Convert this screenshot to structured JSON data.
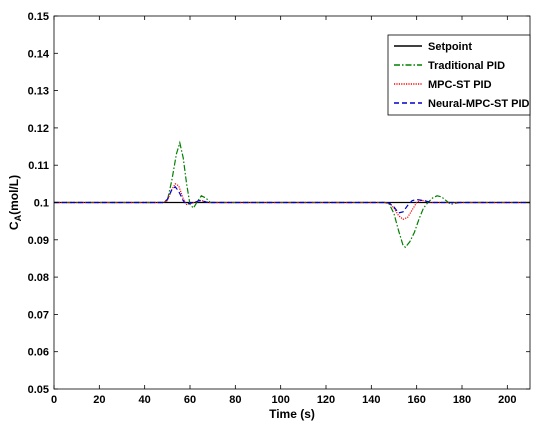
{
  "chart_data": {
    "type": "line",
    "xlabel": "Time (s)",
    "ylabel_main": "C",
    "ylabel_sub": "A",
    "ylabel_rest": "(mol/L)",
    "xlim": [
      0,
      210
    ],
    "ylim": [
      0.05,
      0.15
    ],
    "xticks": [
      0,
      20,
      40,
      60,
      80,
      100,
      120,
      140,
      160,
      180,
      200
    ],
    "yticks": [
      0.05,
      0.06,
      0.07,
      0.08,
      0.09,
      0.1,
      0.11,
      0.12,
      0.13,
      0.14,
      0.15
    ],
    "ytick_labels": [
      "0.05",
      "0.06",
      "0.07",
      "0.08",
      "0.09",
      "0.1",
      "0.11",
      "0.12",
      "0.13",
      "0.14",
      "0.15"
    ],
    "grid": false,
    "legend_position": "top-right",
    "series": [
      {
        "name": "Setpoint",
        "color": "#000000",
        "style": "solid",
        "points": [
          [
            0,
            0.1
          ],
          [
            210,
            0.1
          ]
        ]
      },
      {
        "name": "Traditional PID",
        "color": "#008000",
        "style": "dashdot",
        "points": [
          [
            0,
            0.1
          ],
          [
            48,
            0.1
          ],
          [
            50,
            0.1005
          ],
          [
            52,
            0.106
          ],
          [
            54,
            0.113
          ],
          [
            55.5,
            0.116
          ],
          [
            57,
            0.112
          ],
          [
            58.5,
            0.105
          ],
          [
            60,
            0.0995
          ],
          [
            61.5,
            0.0985
          ],
          [
            63,
            0.1
          ],
          [
            65,
            0.1018
          ],
          [
            67,
            0.1012
          ],
          [
            69,
            0.1
          ],
          [
            146,
            0.1
          ],
          [
            148,
            0.0995
          ],
          [
            150,
            0.097
          ],
          [
            152,
            0.0925
          ],
          [
            154,
            0.0885
          ],
          [
            155,
            0.088
          ],
          [
            157,
            0.0895
          ],
          [
            159,
            0.092
          ],
          [
            161,
            0.0955
          ],
          [
            163,
            0.0985
          ],
          [
            165,
            0.1
          ],
          [
            167,
            0.1012
          ],
          [
            169,
            0.1018
          ],
          [
            171,
            0.1015
          ],
          [
            173,
            0.1005
          ],
          [
            175,
            0.0995
          ],
          [
            177,
            0.0998
          ],
          [
            179,
            0.1
          ],
          [
            210,
            0.1
          ]
        ]
      },
      {
        "name": "MPC-ST PID",
        "color": "#ff0000",
        "style": "dotted",
        "points": [
          [
            0,
            0.1
          ],
          [
            48,
            0.1
          ],
          [
            50,
            0.1005
          ],
          [
            52,
            0.1035
          ],
          [
            53.5,
            0.105
          ],
          [
            55,
            0.1045
          ],
          [
            57,
            0.101
          ],
          [
            58.5,
            0.0995
          ],
          [
            60,
            0.0998
          ],
          [
            62,
            0.1
          ],
          [
            64,
            0.1006
          ],
          [
            66,
            0.1004
          ],
          [
            68,
            0.1
          ],
          [
            146,
            0.1
          ],
          [
            148,
            0.0998
          ],
          [
            150,
            0.0985
          ],
          [
            152,
            0.0965
          ],
          [
            154,
            0.0955
          ],
          [
            156,
            0.096
          ],
          [
            158,
            0.098
          ],
          [
            160,
            0.1
          ],
          [
            162,
            0.1006
          ],
          [
            164,
            0.1004
          ],
          [
            166,
            0.1
          ],
          [
            210,
            0.1
          ]
        ]
      },
      {
        "name": "Neural-MPC-ST PID",
        "color": "#0000cc",
        "style": "dashed",
        "points": [
          [
            0,
            0.1
          ],
          [
            48,
            0.1
          ],
          [
            50,
            0.1008
          ],
          [
            52,
            0.1035
          ],
          [
            53.5,
            0.1042
          ],
          [
            55,
            0.103
          ],
          [
            57,
            0.1005
          ],
          [
            58.5,
            0.0995
          ],
          [
            60,
            0.0998
          ],
          [
            62,
            0.1
          ],
          [
            64,
            0.1005
          ],
          [
            66,
            0.1003
          ],
          [
            68,
            0.1
          ],
          [
            146,
            0.1
          ],
          [
            148,
            0.0998
          ],
          [
            150,
            0.0988
          ],
          [
            152,
            0.0972
          ],
          [
            154,
            0.0975
          ],
          [
            156,
            0.0992
          ],
          [
            158,
            0.1005
          ],
          [
            160,
            0.1008
          ],
          [
            162,
            0.1006
          ],
          [
            164,
            0.1004
          ],
          [
            166,
            0.1
          ],
          [
            210,
            0.1
          ]
        ]
      }
    ]
  }
}
